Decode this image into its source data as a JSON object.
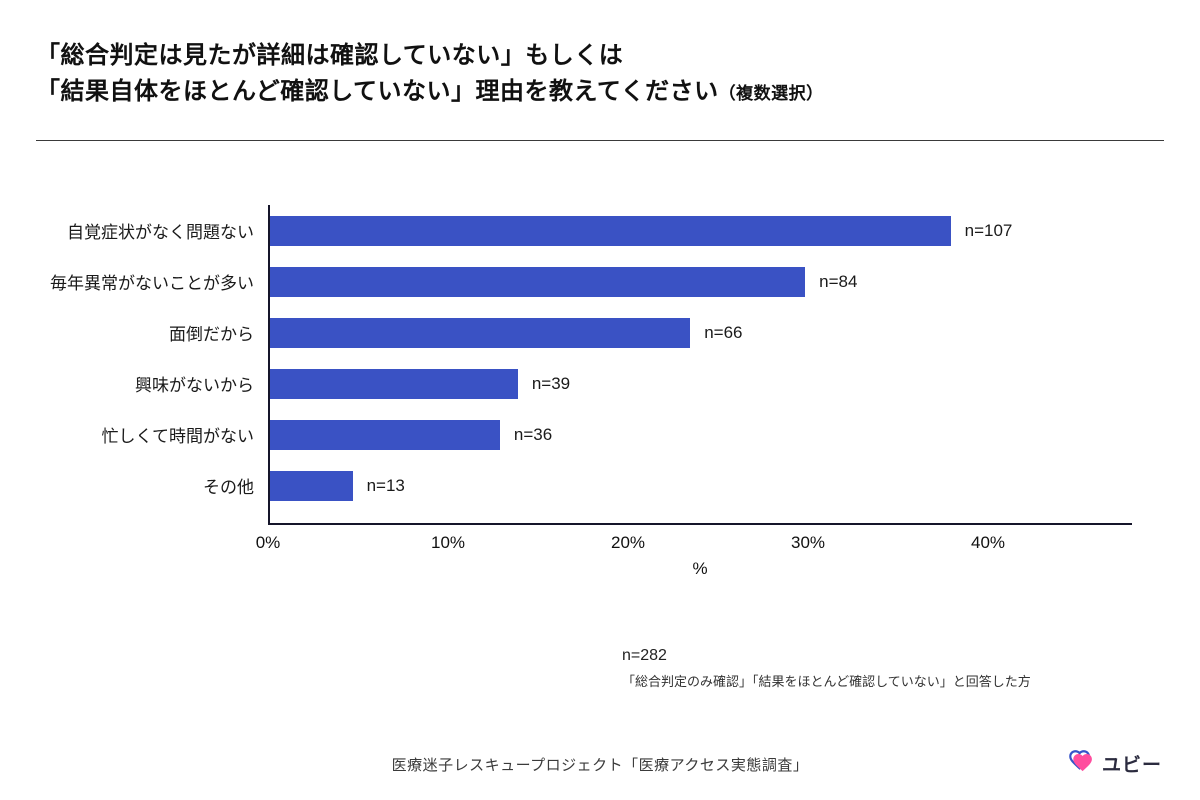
{
  "title": {
    "line1": "「総合判定は見たが詳細は確認していない」もしくは",
    "line2": "「結果自体をほとんど確認していない」理由を教えてください",
    "line2_suffix": "（複数選択）"
  },
  "chart_data": {
    "type": "bar",
    "orientation": "horizontal",
    "title": "「総合判定は見たが詳細は確認していない」もしくは「結果自体をほとんど確認していない」理由を教えてください（複数選択）",
    "categories": [
      "自覚症状がなく問題ない",
      "毎年異常がないことが多い",
      "面倒だから",
      "興味がないから",
      "忙しくて時間がない",
      "その他"
    ],
    "values_percent": [
      37.9,
      29.8,
      23.4,
      13.8,
      12.8,
      4.6
    ],
    "counts": [
      107,
      84,
      66,
      39,
      36,
      13
    ],
    "value_labels": [
      "n=107",
      "n=84",
      "n=66",
      "n=39",
      "n=36",
      "n=13"
    ],
    "xlabel": "%",
    "x_ticks": [
      "0%",
      "10%",
      "20%",
      "30%",
      "40%"
    ],
    "x_tick_values": [
      0,
      10,
      20,
      30,
      40
    ],
    "xlim": [
      0,
      48
    ],
    "grid": false,
    "legend": "none",
    "bar_color": "#3a52c4"
  },
  "notes": {
    "n_total": "n=282",
    "description": "「総合判定のみ確認」「結果をほとんど確認していない」と回答した方"
  },
  "footer": {
    "source": "医療迷子レスキュープロジェクト「医療アクセス実態調査」",
    "brand": "ユビー"
  }
}
